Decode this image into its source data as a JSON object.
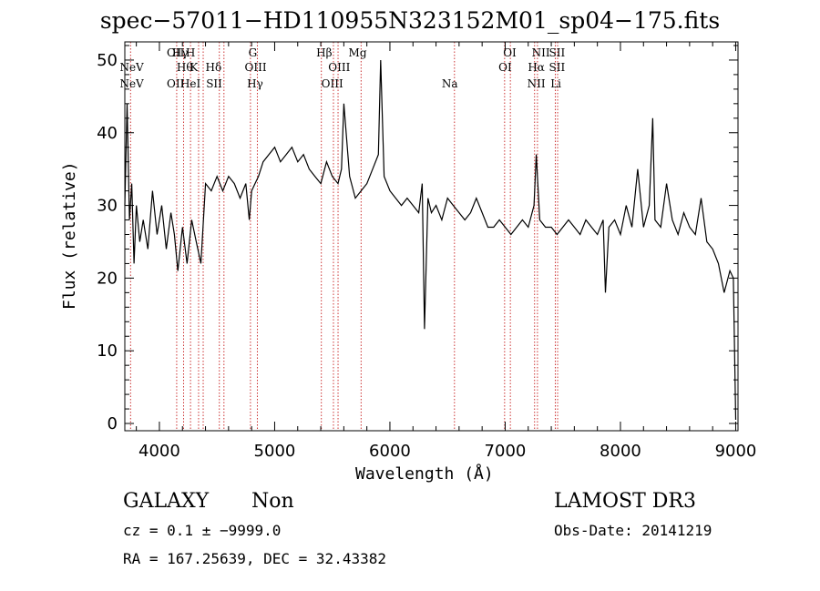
{
  "chart_data": {
    "type": "line",
    "title": "spec−57011−HD110955N323152M01_sp04−175.fits",
    "xlabel": "Wavelength (Å)",
    "ylabel": "Flux (relative)",
    "xlim": [
      3700,
      9020
    ],
    "ylim": [
      -1,
      52.5
    ],
    "x_ticks": [
      4000,
      5000,
      6000,
      7000,
      8000,
      9000
    ],
    "x_tick_labels": [
      "4000",
      "5000",
      "6000",
      "7000",
      "8000",
      "9000"
    ],
    "y_ticks": [
      0,
      10,
      20,
      30,
      40,
      50
    ],
    "y_tick_labels": [
      "0",
      "10",
      "20",
      "30",
      "40",
      "50"
    ],
    "series": [
      {
        "name": "flux",
        "x": [
          3700,
          3720,
          3740,
          3760,
          3780,
          3800,
          3830,
          3860,
          3900,
          3940,
          3980,
          4020,
          4060,
          4100,
          4130,
          4160,
          4200,
          4240,
          4280,
          4320,
          4360,
          4400,
          4450,
          4500,
          4550,
          4600,
          4650,
          4700,
          4750,
          4780,
          4800,
          4830,
          4860,
          4900,
          4950,
          5000,
          5050,
          5100,
          5150,
          5200,
          5250,
          5300,
          5350,
          5400,
          5450,
          5500,
          5550,
          5580,
          5600,
          5650,
          5700,
          5750,
          5800,
          5850,
          5900,
          5920,
          5950,
          6000,
          6050,
          6100,
          6150,
          6200,
          6250,
          6280,
          6300,
          6330,
          6360,
          6400,
          6450,
          6500,
          6550,
          6600,
          6650,
          6700,
          6750,
          6800,
          6850,
          6900,
          6950,
          7000,
          7050,
          7100,
          7150,
          7200,
          7250,
          7270,
          7300,
          7350,
          7400,
          7450,
          7500,
          7550,
          7600,
          7650,
          7700,
          7750,
          7800,
          7850,
          7870,
          7900,
          7950,
          8000,
          8050,
          8100,
          8150,
          8200,
          8250,
          8280,
          8300,
          8350,
          8400,
          8450,
          8500,
          8550,
          8600,
          8650,
          8700,
          8750,
          8800,
          8850,
          8900,
          8950,
          8980,
          9000
        ],
        "values": [
          30,
          44,
          28,
          33,
          22,
          30,
          25,
          28,
          24,
          32,
          26,
          30,
          24,
          29,
          26,
          21,
          27,
          22,
          28,
          25,
          22,
          33,
          32,
          34,
          32,
          34,
          33,
          31,
          33,
          28,
          32,
          33,
          34,
          36,
          37,
          38,
          36,
          37,
          38,
          36,
          37,
          35,
          34,
          33,
          36,
          34,
          33,
          35,
          44,
          34,
          31,
          32,
          33,
          35,
          37,
          50,
          34,
          32,
          31,
          30,
          31,
          30,
          29,
          33,
          13,
          31,
          29,
          30,
          28,
          31,
          30,
          29,
          28,
          29,
          31,
          29,
          27,
          27,
          28,
          27,
          26,
          27,
          28,
          27,
          30,
          37,
          28,
          27,
          27,
          26,
          27,
          28,
          27,
          26,
          28,
          27,
          26,
          28,
          18,
          27,
          28,
          26,
          30,
          27,
          35,
          27,
          30,
          42,
          28,
          27,
          33,
          28,
          26,
          29,
          27,
          26,
          31,
          25,
          24,
          22,
          18,
          21,
          20,
          0.5
        ]
      }
    ],
    "emission_lines": [
      {
        "label": "NeV",
        "wavelength": 3760,
        "row": 2
      },
      {
        "label": "NeV",
        "wavelength": 3760,
        "row": 3
      },
      {
        "label": "OII",
        "wavelength": 4140,
        "row": 1
      },
      {
        "label": "Hγ",
        "wavelength": 4180,
        "row": 1
      },
      {
        "label": "H",
        "wavelength": 4270,
        "row": 1
      },
      {
        "label": "Hδ",
        "wavelength": 4470,
        "row": 2
      },
      {
        "label": "Hθ",
        "wavelength": 4220,
        "row": 2
      },
      {
        "label": "K",
        "wavelength": 4300,
        "row": 2
      },
      {
        "label": "OII",
        "wavelength": 4140,
        "row": 3
      },
      {
        "label": "HeI",
        "wavelength": 4270,
        "row": 3
      },
      {
        "label": "SII",
        "wavelength": 4475,
        "row": 3
      },
      {
        "label": "G",
        "wavelength": 4810,
        "row": 1
      },
      {
        "label": "OIII",
        "wavelength": 4835,
        "row": 2
      },
      {
        "label": "Hγ",
        "wavelength": 4830,
        "row": 3
      },
      {
        "label": "Hβ",
        "wavelength": 5430,
        "row": 1
      },
      {
        "label": "OIII",
        "wavelength": 5560,
        "row": 2
      },
      {
        "label": "OIII",
        "wavelength": 5500,
        "row": 3
      },
      {
        "label": "Mg",
        "wavelength": 5720,
        "row": 1
      },
      {
        "label": "Na",
        "wavelength": 6520,
        "row": 3
      },
      {
        "label": "OI",
        "wavelength": 7040,
        "row": 1
      },
      {
        "label": "OI",
        "wavelength": 7000,
        "row": 2
      },
      {
        "label": "NII",
        "wavelength": 7310,
        "row": 1
      },
      {
        "label": "SII",
        "wavelength": 7450,
        "row": 1
      },
      {
        "label": "Hα",
        "wavelength": 7270,
        "row": 2
      },
      {
        "label": "SII",
        "wavelength": 7450,
        "row": 2
      },
      {
        "label": "NII",
        "wavelength": 7270,
        "row": 3
      },
      {
        "label": "Li",
        "wavelength": 7440,
        "row": 3
      }
    ],
    "reference_lines": [
      3750,
      4150,
      4210,
      4270,
      4340,
      4380,
      4520,
      4560,
      4790,
      4850,
      5405,
      5510,
      5550,
      5750,
      6560,
      6995,
      7045,
      7255,
      7280,
      7435,
      7455
    ]
  },
  "info": {
    "object_class": "GALAXY",
    "subclass": "Non",
    "survey": "LAMOST DR3",
    "cz_line": "cz = 0.1 ± −9999.0",
    "obs_date_line": "Obs-Date: 20141219",
    "coords_line": "RA = 167.25639, DEC =  32.43382"
  },
  "colors": {
    "spectrum": "#000000",
    "reference_line": "#cc3333",
    "axis": "#000000",
    "background": "#ffffff"
  }
}
